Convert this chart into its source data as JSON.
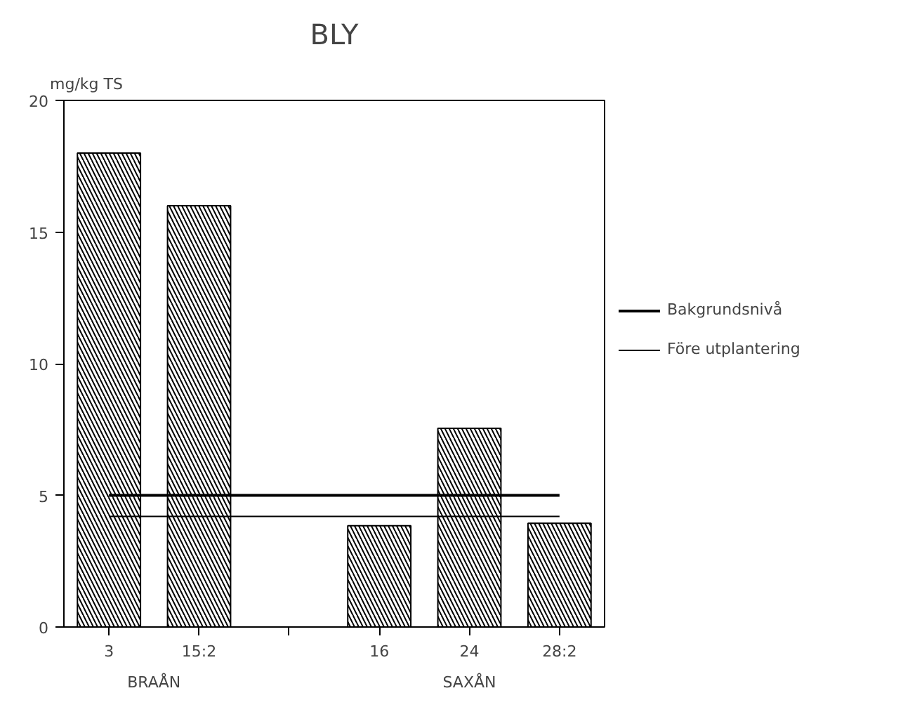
{
  "chart_data": {
    "type": "bar",
    "title": "BLY",
    "ylabel": "mg/kg TS",
    "categories": [
      "3",
      "15:2",
      null,
      "16",
      "24",
      "28:2"
    ],
    "values": [
      18,
      16,
      null,
      3.85,
      7.55,
      3.94
    ],
    "color": "#000000",
    "ylim": [
      0,
      20
    ],
    "yticks": [
      0,
      5,
      10,
      15,
      20
    ],
    "ref_lines": [
      {
        "axis": "y",
        "value": 5,
        "label": "Bakgrundsnivå",
        "color": "#000000"
      },
      {
        "axis": "y",
        "value": 4.2,
        "label": "Före utplantering",
        "color": "#000000"
      }
    ],
    "annotations": [
      "BRAÅN",
      "SAXÅN"
    ],
    "grid": false,
    "legend": "right"
  }
}
